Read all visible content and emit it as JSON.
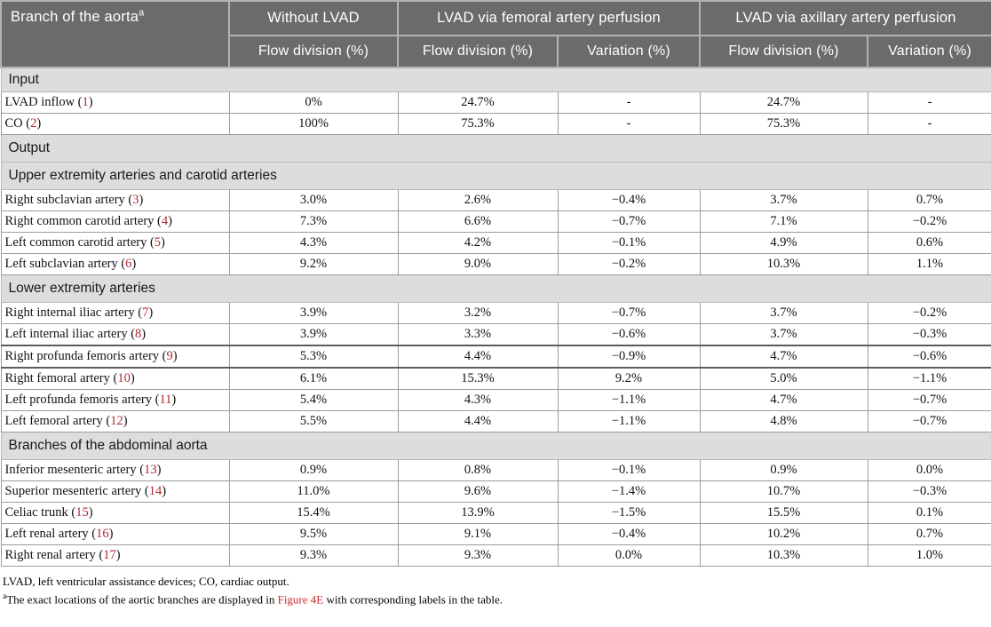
{
  "accent_red": "#b3282d",
  "header_gray": "#6b6b6b",
  "section_gray": "#dddddd",
  "header": {
    "corner_label": "Branch of the aorta",
    "corner_sup": "a",
    "groups": [
      {
        "label": "Without LVAD",
        "cols": [
          "Flow division (%)"
        ]
      },
      {
        "label": "LVAD via femoral artery perfusion",
        "cols": [
          "Flow division (%)",
          "Variation (%)"
        ]
      },
      {
        "label": "LVAD via axillary artery perfusion",
        "cols": [
          "Flow division (%)",
          "Variation (%)"
        ]
      }
    ]
  },
  "sections": [
    {
      "title": "Input",
      "rows": [
        {
          "label": "LVAD inflow",
          "num": "1",
          "values": [
            "0%",
            "24.7%",
            "-",
            "24.7%",
            "-"
          ]
        },
        {
          "label": "CO",
          "num": "2",
          "values": [
            "100%",
            "75.3%",
            "-",
            "75.3%",
            "-"
          ]
        }
      ]
    },
    {
      "title": "Output",
      "rows": []
    },
    {
      "title": "Upper extremity arteries and carotid arteries",
      "rows": [
        {
          "label": "Right subclavian artery",
          "num": "3",
          "values": [
            "3.0%",
            "2.6%",
            "−0.4%",
            "3.7%",
            "0.7%"
          ]
        },
        {
          "label": "Right common carotid artery",
          "num": "4",
          "values": [
            "7.3%",
            "6.6%",
            "−0.7%",
            "7.1%",
            "−0.2%"
          ]
        },
        {
          "label": "Left common carotid artery",
          "num": "5",
          "values": [
            "4.3%",
            "4.2%",
            "−0.1%",
            "4.9%",
            "0.6%"
          ]
        },
        {
          "label": "Left subclavian artery",
          "num": "6",
          "values": [
            "9.2%",
            "9.0%",
            "−0.2%",
            "10.3%",
            "1.1%"
          ]
        }
      ]
    },
    {
      "title": "Lower extremity arteries",
      "rows": [
        {
          "label": "Right internal iliac artery",
          "num": "7",
          "values": [
            "3.9%",
            "3.2%",
            "−0.7%",
            "3.7%",
            "−0.2%"
          ]
        },
        {
          "label": "Left internal iliac artery",
          "num": "8",
          "values": [
            "3.9%",
            "3.3%",
            "−0.6%",
            "3.7%",
            "−0.3%"
          ]
        },
        {
          "label": "Right profunda femoris artery",
          "num": "9",
          "heavy": true,
          "values": [
            "5.3%",
            "4.4%",
            "−0.9%",
            "4.7%",
            "−0.6%"
          ]
        },
        {
          "label": "Right femoral artery",
          "num": "10",
          "values": [
            "6.1%",
            "15.3%",
            "9.2%",
            "5.0%",
            "−1.1%"
          ]
        },
        {
          "label": "Left profunda femoris artery",
          "num": "11",
          "values": [
            "5.4%",
            "4.3%",
            "−1.1%",
            "4.7%",
            "−0.7%"
          ]
        },
        {
          "label": "Left femoral artery",
          "num": "12",
          "values": [
            "5.5%",
            "4.4%",
            "−1.1%",
            "4.8%",
            "−0.7%"
          ]
        }
      ]
    },
    {
      "title": "Branches of the abdominal aorta",
      "rows": [
        {
          "label": "Inferior mesenteric artery",
          "num": "13",
          "values": [
            "0.9%",
            "0.8%",
            "−0.1%",
            "0.9%",
            "0.0%"
          ]
        },
        {
          "label": "Superior mesenteric artery",
          "num": "14",
          "values": [
            "11.0%",
            "9.6%",
            "−1.4%",
            "10.7%",
            "−0.3%"
          ]
        },
        {
          "label": "Celiac trunk",
          "num": "15",
          "values": [
            "15.4%",
            "13.9%",
            "−1.5%",
            "15.5%",
            "0.1%"
          ]
        },
        {
          "label": "Left renal artery",
          "num": "16",
          "values": [
            "9.5%",
            "9.1%",
            "−0.4%",
            "10.2%",
            "0.7%"
          ]
        },
        {
          "label": "Right renal artery",
          "num": "17",
          "values": [
            "9.3%",
            "9.3%",
            "0.0%",
            "10.3%",
            "1.0%"
          ]
        }
      ]
    }
  ],
  "footnotes": {
    "abbrev": "LVAD, left ventricular assistance devices; CO, cardiac output.",
    "note_sup": "a",
    "note_pre": "The exact locations of the aortic branches are displayed in ",
    "note_link": "Figure 4E",
    "note_post": " with corresponding labels in the table."
  }
}
